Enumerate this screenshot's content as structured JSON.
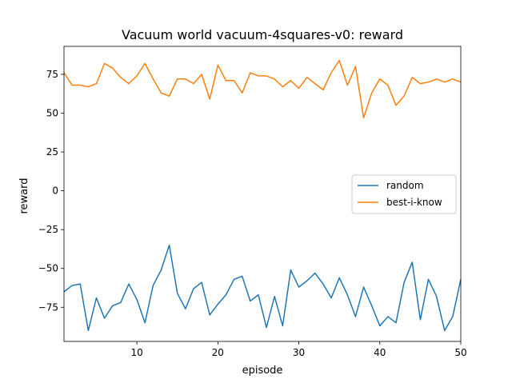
{
  "chart_data": {
    "type": "line",
    "title": "Vacuum world vacuum-4squares-v0: reward",
    "xlabel": "episode",
    "ylabel": "reward",
    "xlim": [
      1,
      50
    ],
    "ylim": [
      -97,
      93
    ],
    "x_ticks": [
      10,
      20,
      30,
      40,
      50
    ],
    "x_tick_labels": [
      "10",
      "20",
      "30",
      "40",
      "50"
    ],
    "y_ticks": [
      -75,
      -50,
      -25,
      0,
      25,
      50,
      75
    ],
    "y_tick_labels": [
      "−75",
      "−50",
      "−25",
      "0",
      "25",
      "50",
      "75"
    ],
    "grid": false,
    "legend_position": "center-right",
    "x": [
      1,
      2,
      3,
      4,
      5,
      6,
      7,
      8,
      9,
      10,
      11,
      12,
      13,
      14,
      15,
      16,
      17,
      18,
      19,
      20,
      21,
      22,
      23,
      24,
      25,
      26,
      27,
      28,
      29,
      30,
      31,
      32,
      33,
      34,
      35,
      36,
      37,
      38,
      39,
      40,
      41,
      42,
      43,
      44,
      45,
      46,
      47,
      48,
      49,
      50
    ],
    "series": [
      {
        "name": "random",
        "color": "#1f77b4",
        "values": [
          -65,
          -61,
          -60,
          -90,
          -69,
          -82,
          -74,
          -72,
          -60,
          -70,
          -85,
          -61,
          -51,
          -35,
          -66,
          -76,
          -63,
          -59,
          -80,
          -73,
          -67,
          -57,
          -55,
          -71,
          -67,
          -88,
          -68,
          -87,
          -51,
          -62,
          -58,
          -53,
          -60,
          -69,
          -56,
          -67,
          -81,
          -62,
          -74,
          -87,
          -81,
          -85,
          -59,
          -46,
          -83,
          -57,
          -68,
          -90,
          -81,
          -57
        ]
      },
      {
        "name": "best-i-know",
        "color": "#ff7f0e",
        "values": [
          76,
          68,
          68,
          67,
          69,
          82,
          79,
          73,
          69,
          74,
          82,
          72,
          63,
          61,
          72,
          72,
          69,
          75,
          59,
          81,
          71,
          71,
          63,
          76,
          74,
          74,
          72,
          67,
          71,
          66,
          73,
          69,
          65,
          76,
          84,
          68,
          80,
          47,
          63,
          72,
          68,
          55,
          61,
          73,
          69,
          70,
          72,
          70,
          72,
          70
        ]
      }
    ]
  }
}
